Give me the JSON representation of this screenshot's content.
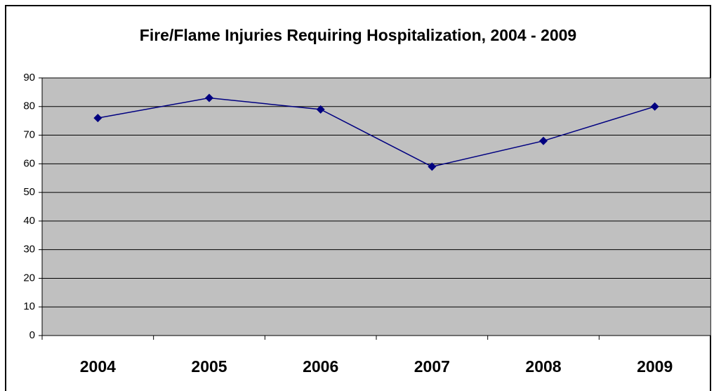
{
  "chart_data": {
    "type": "line",
    "title": "Fire/Flame Injuries Requiring Hospitalization, 2004 - 2009",
    "categories": [
      "2004",
      "2005",
      "2006",
      "2007",
      "2008",
      "2009"
    ],
    "values": [
      76,
      83,
      79,
      59,
      68,
      80
    ],
    "color": "#000080",
    "ylim": [
      0,
      90
    ],
    "yticks": [
      0,
      10,
      20,
      30,
      40,
      50,
      60,
      70,
      80,
      90
    ],
    "grid": true
  }
}
